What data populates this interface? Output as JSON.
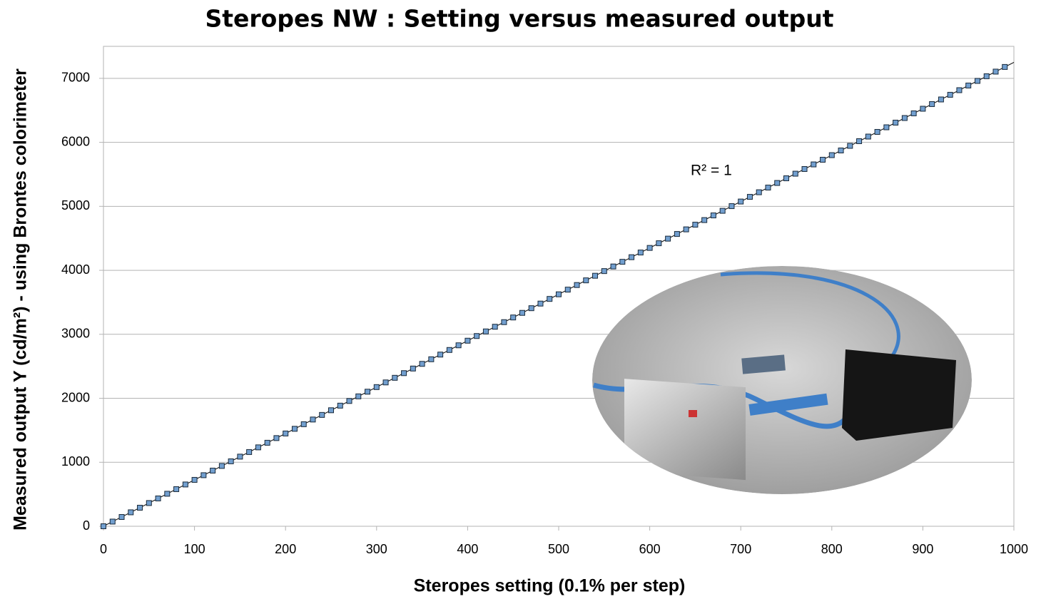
{
  "chart_data": {
    "type": "scatter",
    "title": "Steropes NW : Setting versus measured output",
    "x_label": "Steropes setting (0.1% per step)",
    "y_label": "Measured output  Y (cd/m²) - using Brontes colorimeter",
    "annotation": "R² = 1",
    "x": [
      0,
      10,
      20,
      30,
      40,
      50,
      60,
      70,
      80,
      90,
      100,
      110,
      120,
      130,
      140,
      150,
      160,
      170,
      180,
      190,
      200,
      210,
      220,
      230,
      240,
      250,
      260,
      270,
      280,
      290,
      300,
      310,
      320,
      330,
      340,
      350,
      360,
      370,
      380,
      390,
      400,
      410,
      420,
      430,
      440,
      450,
      460,
      470,
      480,
      490,
      500,
      510,
      520,
      530,
      540,
      550,
      560,
      570,
      580,
      590,
      600,
      610,
      620,
      630,
      640,
      650,
      660,
      670,
      680,
      690,
      700,
      710,
      720,
      730,
      740,
      750,
      760,
      770,
      780,
      790,
      800,
      810,
      820,
      830,
      840,
      850,
      860,
      870,
      880,
      890,
      900,
      910,
      920,
      930,
      940,
      950,
      960,
      970,
      980,
      990
    ],
    "values": [
      0,
      73,
      145,
      218,
      290,
      363,
      435,
      508,
      580,
      653,
      725,
      798,
      870,
      943,
      1015,
      1088,
      1160,
      1233,
      1305,
      1378,
      1450,
      1523,
      1595,
      1668,
      1740,
      1813,
      1885,
      1958,
      2030,
      2103,
      2175,
      2248,
      2320,
      2393,
      2465,
      2538,
      2610,
      2683,
      2755,
      2828,
      2900,
      2973,
      3045,
      3118,
      3190,
      3263,
      3335,
      3408,
      3480,
      3553,
      3625,
      3698,
      3770,
      3843,
      3915,
      3988,
      4060,
      4133,
      4205,
      4278,
      4350,
      4423,
      4495,
      4568,
      4640,
      4713,
      4785,
      4858,
      4930,
      5003,
      5075,
      5148,
      5220,
      5293,
      5365,
      5438,
      5510,
      5583,
      5655,
      5728,
      5800,
      5873,
      5945,
      6018,
      6090,
      6163,
      6235,
      6308,
      6380,
      6453,
      6525,
      6598,
      6670,
      6743,
      6815,
      6888,
      6960,
      7033,
      7105,
      7178
    ],
    "color": "#729fcf",
    "trendline": true,
    "xlim": [
      0,
      1000
    ],
    "xticks": [
      0,
      100,
      200,
      300,
      400,
      500,
      600,
      700,
      800,
      900,
      1000
    ],
    "ylim": [
      0,
      7500
    ],
    "yticks": [
      0,
      1000,
      2000,
      3000,
      4000,
      5000,
      6000,
      7000
    ],
    "grid": true
  }
}
